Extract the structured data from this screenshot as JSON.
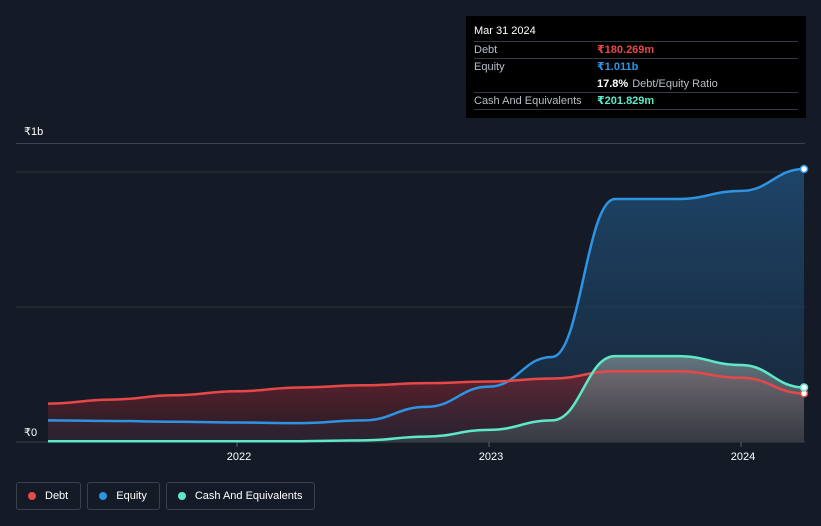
{
  "tooltip": {
    "date": "Mar 31 2024",
    "debt_label": "Debt",
    "debt_value": "₹180.269m",
    "equity_label": "Equity",
    "equity_value": "₹1.011b",
    "ratio_value": "17.8%",
    "ratio_label": "Debt/Equity Ratio",
    "cash_label": "Cash And Equivalents",
    "cash_value": "₹201.829m"
  },
  "colors": {
    "debt": "#e64848",
    "equity": "#2d94e3",
    "cash": "#5de8c8",
    "background": "#151b26",
    "grid": "#2b313b"
  },
  "legend": [
    {
      "label": "Debt",
      "color": "#e64848"
    },
    {
      "label": "Equity",
      "color": "#2d94e3"
    },
    {
      "label": "Cash And Equivalents",
      "color": "#5de8c8"
    }
  ],
  "chart_data": {
    "type": "area",
    "title": "",
    "xlabel": "",
    "ylabel": "",
    "unit": "₹m",
    "xlim": [
      2021.25,
      2024.25
    ],
    "ylim": [
      0,
      1100
    ],
    "y_tick_labels": [
      {
        "value": 1000,
        "label": "₹1b"
      },
      {
        "value": 0,
        "label": "₹0"
      }
    ],
    "x_tick_labels": [
      {
        "value": 2022,
        "label": "2022"
      },
      {
        "value": 2023,
        "label": "2023"
      },
      {
        "value": 2024,
        "label": "2024"
      }
    ],
    "series": [
      {
        "name": "Debt",
        "points": [
          [
            2021.25,
            142
          ],
          [
            2021.5,
            157
          ],
          [
            2021.75,
            173
          ],
          [
            2022.0,
            188
          ],
          [
            2022.25,
            202
          ],
          [
            2022.5,
            210
          ],
          [
            2022.75,
            218
          ],
          [
            2023.0,
            224
          ],
          [
            2023.25,
            235
          ],
          [
            2023.5,
            262
          ],
          [
            2023.75,
            262
          ],
          [
            2024.0,
            238
          ],
          [
            2024.25,
            180
          ]
        ]
      },
      {
        "name": "Equity",
        "points": [
          [
            2021.25,
            80
          ],
          [
            2021.5,
            78
          ],
          [
            2021.75,
            75
          ],
          [
            2022.0,
            72
          ],
          [
            2022.25,
            70
          ],
          [
            2022.5,
            80
          ],
          [
            2022.75,
            130
          ],
          [
            2023.0,
            205
          ],
          [
            2023.25,
            315
          ],
          [
            2023.5,
            900
          ],
          [
            2023.75,
            900
          ],
          [
            2024.0,
            930
          ],
          [
            2024.25,
            1011
          ]
        ]
      },
      {
        "name": "Cash And Equivalents",
        "points": [
          [
            2021.25,
            3
          ],
          [
            2021.5,
            3
          ],
          [
            2021.75,
            3
          ],
          [
            2022.0,
            3
          ],
          [
            2022.25,
            3
          ],
          [
            2022.5,
            6
          ],
          [
            2022.75,
            20
          ],
          [
            2023.0,
            45
          ],
          [
            2023.25,
            80
          ],
          [
            2023.5,
            318
          ],
          [
            2023.75,
            318
          ],
          [
            2024.0,
            285
          ],
          [
            2024.25,
            202
          ]
        ]
      }
    ]
  }
}
